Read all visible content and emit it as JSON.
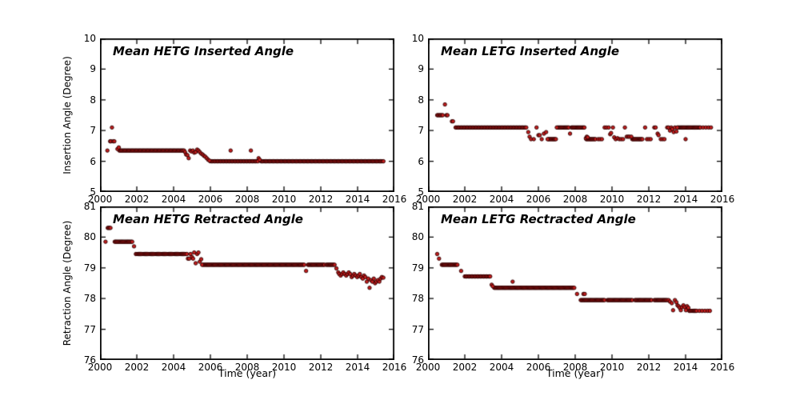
{
  "figure": {
    "background": "#ffffff",
    "marker_fill": "#c51d1d",
    "marker_edge": "#2a0000",
    "frame_color": "#000000"
  },
  "axis_labels": {
    "insertion": "Insertion Angle (Degree)",
    "retraction": "Retraction Angle (Degree)",
    "time_left": "Time (year)",
    "time_right": "Time (year)"
  },
  "chart_data": [
    {
      "type": "scatter",
      "title": "Mean HETG Inserted Angle",
      "xlabel": "",
      "ylabel": "Insertion Angle (Degree)",
      "xlim": [
        2000,
        2016
      ],
      "ylim": [
        5,
        10
      ],
      "xticks": [
        2000,
        2002,
        2004,
        2006,
        2008,
        2010,
        2012,
        2014,
        2016
      ],
      "yticks": [
        5,
        6,
        7,
        8,
        9,
        10
      ],
      "grid": false,
      "legend": null,
      "series": [
        {
          "name": "mean-hetg-inserted-angle",
          "runs": [
            [
              2001.05,
              2004.55,
              0.055,
              6.35
            ],
            [
              2006.0,
              2008.55,
              0.06,
              6.0
            ],
            [
              2008.75,
              2015.4,
              0.055,
              6.0
            ]
          ],
          "points": [
            [
              2000.4,
              6.35
            ],
            [
              2000.55,
              6.65
            ],
            [
              2000.6,
              6.65
            ],
            [
              2000.72,
              6.65
            ],
            [
              2000.78,
              6.65
            ],
            [
              2000.65,
              7.1
            ],
            [
              2000.95,
              6.4
            ],
            [
              2001.02,
              6.45
            ],
            [
              2004.62,
              6.3
            ],
            [
              2004.68,
              6.22
            ],
            [
              2004.75,
              6.2
            ],
            [
              2004.82,
              6.1
            ],
            [
              2004.9,
              6.35
            ],
            [
              2004.97,
              6.32
            ],
            [
              2005.05,
              6.35
            ],
            [
              2005.12,
              6.28
            ],
            [
              2005.2,
              6.3
            ],
            [
              2005.28,
              6.38
            ],
            [
              2005.35,
              6.35
            ],
            [
              2005.42,
              6.3
            ],
            [
              2005.5,
              6.25
            ],
            [
              2005.58,
              6.22
            ],
            [
              2005.65,
              6.18
            ],
            [
              2005.72,
              6.15
            ],
            [
              2005.8,
              6.1
            ],
            [
              2005.88,
              6.05
            ],
            [
              2005.95,
              6.02
            ],
            [
              2007.1,
              6.35
            ],
            [
              2008.2,
              6.35
            ],
            [
              2008.62,
              6.1
            ],
            [
              2008.68,
              6.05
            ]
          ]
        }
      ]
    },
    {
      "type": "scatter",
      "title": "Mean LETG Inserted Angle",
      "xlabel": "",
      "ylabel": "",
      "xlim": [
        2000,
        2016
      ],
      "ylim": [
        5,
        10
      ],
      "xticks": [
        2000,
        2002,
        2004,
        2006,
        2008,
        2010,
        2012,
        2014,
        2016
      ],
      "yticks": [
        5,
        6,
        7,
        8,
        9,
        10
      ],
      "grid": false,
      "legend": null,
      "series": [
        {
          "name": "mean-letg-inserted-angle",
          "runs": [
            [
              2001.5,
              2005.35,
              0.06,
              7.1
            ],
            [
              2006.55,
              2006.95,
              0.05,
              6.72
            ],
            [
              2007.05,
              2007.65,
              0.05,
              7.1
            ],
            [
              2007.8,
              2008.5,
              0.05,
              7.1
            ],
            [
              2008.6,
              2009.1,
              0.05,
              6.72
            ],
            [
              2011.1,
              2011.65,
              0.05,
              6.72
            ],
            [
              2013.6,
              2014.8,
              0.05,
              7.1
            ]
          ],
          "points": [
            [
              2000.5,
              7.5
            ],
            [
              2000.56,
              7.5
            ],
            [
              2000.62,
              7.5
            ],
            [
              2000.68,
              7.5
            ],
            [
              2000.74,
              7.5
            ],
            [
              2000.8,
              7.5
            ],
            [
              2000.92,
              7.85
            ],
            [
              2001.0,
              7.5
            ],
            [
              2001.06,
              7.5
            ],
            [
              2001.3,
              7.3
            ],
            [
              2001.36,
              7.3
            ],
            [
              2005.45,
              6.95
            ],
            [
              2005.52,
              6.8
            ],
            [
              2005.6,
              6.72
            ],
            [
              2005.75,
              6.72
            ],
            [
              2005.9,
              7.1
            ],
            [
              2006.0,
              6.85
            ],
            [
              2006.07,
              6.85
            ],
            [
              2006.18,
              6.72
            ],
            [
              2006.3,
              6.9
            ],
            [
              2006.42,
              6.95
            ],
            [
              2006.5,
              6.72
            ],
            [
              2007.0,
              7.1
            ],
            [
              2007.72,
              6.9
            ],
            [
              2008.58,
              6.75
            ],
            [
              2008.63,
              6.8
            ],
            [
              2008.68,
              6.78
            ],
            [
              2009.25,
              6.72
            ],
            [
              2009.35,
              6.72
            ],
            [
              2009.45,
              6.72
            ],
            [
              2009.6,
              7.1
            ],
            [
              2009.7,
              7.1
            ],
            [
              2009.82,
              7.1
            ],
            [
              2009.9,
              6.88
            ],
            [
              2009.95,
              6.92
            ],
            [
              2010.05,
              7.1
            ],
            [
              2010.12,
              6.78
            ],
            [
              2010.2,
              6.72
            ],
            [
              2010.3,
              6.75
            ],
            [
              2010.4,
              6.72
            ],
            [
              2010.5,
              6.72
            ],
            [
              2010.6,
              6.72
            ],
            [
              2010.7,
              7.1
            ],
            [
              2010.8,
              6.8
            ],
            [
              2010.88,
              6.8
            ],
            [
              2010.95,
              6.8
            ],
            [
              2011.05,
              6.8
            ],
            [
              2011.8,
              7.1
            ],
            [
              2011.9,
              6.72
            ],
            [
              2012.0,
              6.72
            ],
            [
              2012.1,
              6.72
            ],
            [
              2012.3,
              7.1
            ],
            [
              2012.37,
              7.1
            ],
            [
              2012.48,
              6.9
            ],
            [
              2012.53,
              6.85
            ],
            [
              2012.65,
              6.72
            ],
            [
              2012.75,
              6.72
            ],
            [
              2012.85,
              6.72
            ],
            [
              2013.0,
              7.1
            ],
            [
              2013.07,
              7.1
            ],
            [
              2013.15,
              7.0
            ],
            [
              2013.22,
              7.1
            ],
            [
              2013.28,
              7.05
            ],
            [
              2013.35,
              6.95
            ],
            [
              2013.42,
              7.1
            ],
            [
              2013.5,
              6.97
            ],
            [
              2013.55,
              7.1
            ],
            [
              2014.0,
              6.72
            ],
            [
              2014.95,
              7.1
            ],
            [
              2015.1,
              7.1
            ],
            [
              2015.25,
              7.1
            ],
            [
              2015.38,
              7.1
            ]
          ]
        }
      ]
    },
    {
      "type": "scatter",
      "title": "Mean HETG Retracted Angle",
      "xlabel": "Time (year)",
      "ylabel": "Retraction Angle (Degree)",
      "xlim": [
        2000,
        2016
      ],
      "ylim": [
        76,
        81
      ],
      "xticks": [
        2000,
        2002,
        2004,
        2006,
        2008,
        2010,
        2012,
        2014,
        2016
      ],
      "yticks": [
        76,
        77,
        78,
        79,
        80,
        81
      ],
      "grid": false,
      "legend": null,
      "series": [
        {
          "name": "mean-hetg-retracted-angle",
          "runs": [
            [
              2000.8,
              2001.75,
              0.05,
              79.85
            ],
            [
              2001.95,
              2004.65,
              0.05,
              79.45
            ],
            [
              2005.6,
              2011.1,
              0.05,
              79.1
            ],
            [
              2011.3,
              2012.2,
              0.05,
              79.1
            ],
            [
              2012.3,
              2012.75,
              0.05,
              79.1
            ]
          ],
          "points": [
            [
              2000.3,
              79.85
            ],
            [
              2000.42,
              80.3
            ],
            [
              2000.47,
              80.3
            ],
            [
              2000.52,
              80.3
            ],
            [
              2000.57,
              80.3
            ],
            [
              2001.85,
              79.7
            ],
            [
              2004.72,
              79.45
            ],
            [
              2004.78,
              79.3
            ],
            [
              2004.85,
              79.3
            ],
            [
              2004.92,
              79.45
            ],
            [
              2005.0,
              79.35
            ],
            [
              2005.06,
              79.3
            ],
            [
              2005.12,
              79.5
            ],
            [
              2005.2,
              79.15
            ],
            [
              2005.28,
              79.45
            ],
            [
              2005.35,
              79.5
            ],
            [
              2005.42,
              79.2
            ],
            [
              2005.5,
              79.28
            ],
            [
              2005.55,
              79.1
            ],
            [
              2011.2,
              78.9
            ],
            [
              2012.85,
              78.98
            ],
            [
              2012.95,
              78.85
            ],
            [
              2013.0,
              78.8
            ],
            [
              2013.08,
              78.75
            ],
            [
              2013.15,
              78.8
            ],
            [
              2013.22,
              78.85
            ],
            [
              2013.3,
              78.8
            ],
            [
              2013.38,
              78.75
            ],
            [
              2013.45,
              78.8
            ],
            [
              2013.52,
              78.85
            ],
            [
              2013.6,
              78.8
            ],
            [
              2013.68,
              78.7
            ],
            [
              2013.75,
              78.75
            ],
            [
              2013.82,
              78.8
            ],
            [
              2013.9,
              78.75
            ],
            [
              2013.98,
              78.7
            ],
            [
              2014.05,
              78.75
            ],
            [
              2014.12,
              78.8
            ],
            [
              2014.2,
              78.7
            ],
            [
              2014.28,
              78.65
            ],
            [
              2014.35,
              78.75
            ],
            [
              2014.42,
              78.7
            ],
            [
              2014.5,
              78.55
            ],
            [
              2014.58,
              78.65
            ],
            [
              2014.65,
              78.35
            ],
            [
              2014.72,
              78.6
            ],
            [
              2014.8,
              78.55
            ],
            [
              2014.88,
              78.65
            ],
            [
              2014.95,
              78.5
            ],
            [
              2015.02,
              78.55
            ],
            [
              2015.1,
              78.6
            ],
            [
              2015.18,
              78.55
            ],
            [
              2015.25,
              78.65
            ],
            [
              2015.32,
              78.7
            ],
            [
              2015.4,
              78.68
            ]
          ]
        }
      ]
    },
    {
      "type": "scatter",
      "title": "Mean LETG Rectracted Angle",
      "xlabel": "Time (year)",
      "ylabel": "",
      "xlim": [
        2000,
        2016
      ],
      "ylim": [
        76,
        81
      ],
      "xticks": [
        2000,
        2002,
        2004,
        2006,
        2008,
        2010,
        2012,
        2014,
        2016
      ],
      "yticks": [
        76,
        77,
        78,
        79,
        80,
        81
      ],
      "grid": false,
      "legend": null,
      "series": [
        {
          "name": "mean-letg-retracted-angle",
          "runs": [
            [
              2000.75,
              2001.6,
              0.05,
              79.1
            ],
            [
              2002.0,
              2003.4,
              0.06,
              78.72
            ],
            [
              2003.6,
              2007.95,
              0.05,
              78.35
            ],
            [
              2008.3,
              2009.6,
              0.05,
              77.95
            ],
            [
              2009.75,
              2011.1,
              0.05,
              77.95
            ],
            [
              2011.25,
              2012.15,
              0.05,
              77.95
            ],
            [
              2012.3,
              2013.0,
              0.05,
              77.95
            ],
            [
              2014.2,
              2014.6,
              0.05,
              77.6
            ]
          ],
          "points": [
            [
              2000.5,
              79.45
            ],
            [
              2000.6,
              79.3
            ],
            [
              2001.8,
              78.9
            ],
            [
              2003.46,
              78.45
            ],
            [
              2003.52,
              78.4
            ],
            [
              2004.6,
              78.55
            ],
            [
              2008.1,
              78.15
            ],
            [
              2008.45,
              78.15
            ],
            [
              2008.52,
              78.15
            ],
            [
              2013.08,
              77.95
            ],
            [
              2013.15,
              77.9
            ],
            [
              2013.25,
              77.85
            ],
            [
              2013.32,
              77.62
            ],
            [
              2013.42,
              77.95
            ],
            [
              2013.5,
              77.88
            ],
            [
              2013.56,
              77.78
            ],
            [
              2013.62,
              77.75
            ],
            [
              2013.68,
              77.7
            ],
            [
              2013.74,
              77.62
            ],
            [
              2013.8,
              77.72
            ],
            [
              2013.88,
              77.78
            ],
            [
              2013.95,
              77.72
            ],
            [
              2014.02,
              77.62
            ],
            [
              2014.08,
              77.75
            ],
            [
              2014.15,
              77.7
            ],
            [
              2014.75,
              77.6
            ],
            [
              2014.9,
              77.6
            ],
            [
              2015.05,
              77.6
            ],
            [
              2015.2,
              77.6
            ],
            [
              2015.32,
              77.6
            ]
          ]
        }
      ]
    }
  ]
}
